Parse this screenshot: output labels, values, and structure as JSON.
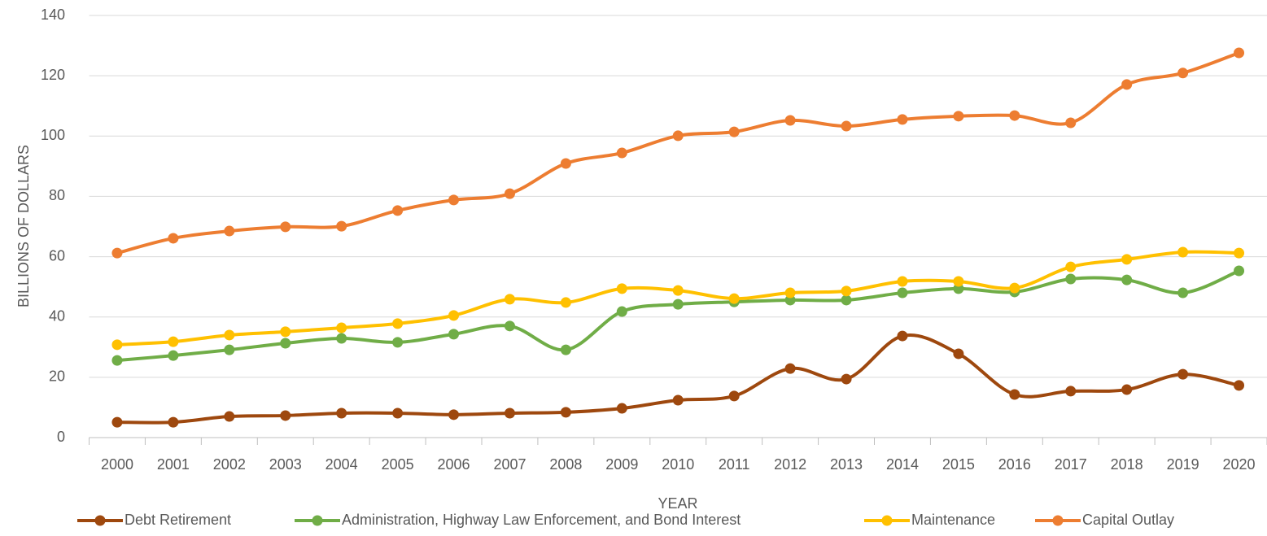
{
  "chart_data": {
    "type": "line",
    "x_label": "YEAR",
    "y_label": "BILLIONS OF DOLLARS",
    "categories": [
      "2000",
      "2001",
      "2002",
      "2003",
      "2004",
      "2005",
      "2006",
      "2007",
      "2008",
      "2009",
      "2010",
      "2011",
      "2012",
      "2013",
      "2014",
      "2015",
      "2016",
      "2017",
      "2018",
      "2019",
      "2020"
    ],
    "series": [
      {
        "name": "Debt Retirement",
        "color": "#9e480e",
        "values": [
          5.1,
          5.1,
          7,
          7.3,
          8.1,
          8.1,
          7.6,
          8.1,
          8.4,
          9.7,
          12.4,
          13.8,
          22.9,
          19.4,
          33.7,
          27.8,
          14.3,
          15.4,
          15.9,
          21,
          17.3
        ]
      },
      {
        "name": "Administration, Highway Law Enforcement, and Bond Interest",
        "color": "#70ad47",
        "values": [
          25.6,
          27.2,
          29.1,
          31.3,
          32.9,
          31.6,
          34.3,
          37,
          29.1,
          41.8,
          44.2,
          45,
          45.6,
          45.6,
          48,
          49.4,
          48.3,
          52.6,
          52.3,
          48,
          55.3
        ]
      },
      {
        "name": "Maintenance",
        "color": "#ffc000",
        "values": [
          30.8,
          31.8,
          34,
          35.1,
          36.4,
          37.8,
          40.5,
          45.9,
          44.8,
          49.4,
          48.8,
          46.1,
          48,
          48.6,
          51.8,
          51.8,
          49.6,
          56.6,
          59.1,
          61.5,
          61.2
        ]
      },
      {
        "name": "Capital Outlay",
        "color": "#ed7d31",
        "values": [
          61.2,
          66.1,
          68.5,
          69.9,
          70.1,
          75.3,
          78.8,
          80.9,
          90.9,
          94.4,
          100.1,
          101.4,
          105.2,
          103.3,
          105.5,
          106.6,
          106.8,
          104.4,
          117.1,
          120.9,
          127.6
        ]
      }
    ],
    "ylim": [
      0,
      140
    ],
    "yticks": [
      0,
      20,
      40,
      60,
      80,
      100,
      120,
      140
    ],
    "grid": true,
    "smooth": true,
    "markers": true,
    "legend": "bottom"
  }
}
